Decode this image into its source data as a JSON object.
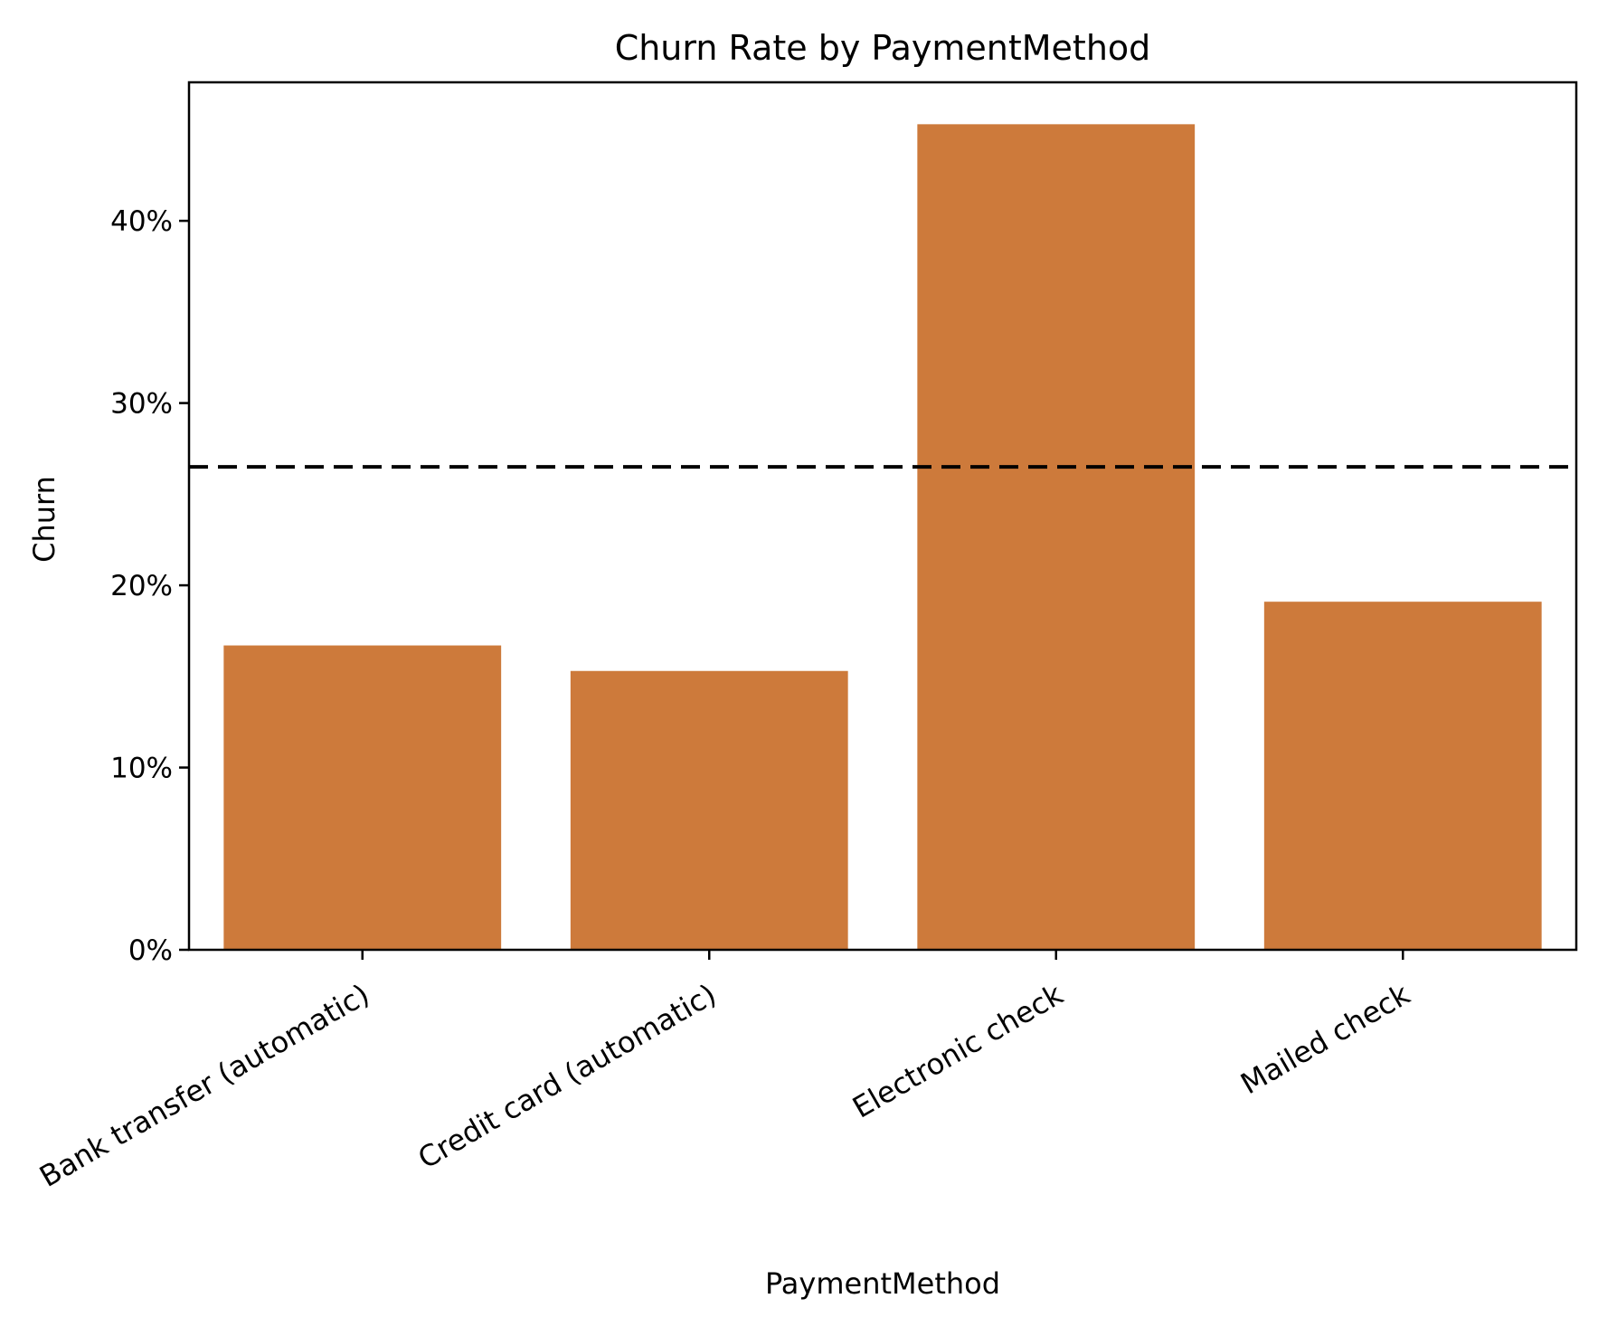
{
  "chart_data": {
    "type": "bar",
    "title": "Churn Rate by PaymentMethod",
    "xlabel": "PaymentMethod",
    "ylabel": "Churn",
    "categories": [
      "Bank transfer (automatic)",
      "Credit card (automatic)",
      "Electronic check",
      "Mailed check"
    ],
    "values": [
      0.167,
      0.153,
      0.453,
      0.191
    ],
    "ylim": [
      0,
      0.476
    ],
    "yticks": [
      0,
      0.1,
      0.2,
      0.3,
      0.4
    ],
    "ytick_labels": [
      "0%",
      "10%",
      "20%",
      "30%",
      "40%"
    ],
    "reference_line": {
      "value": 0.265,
      "style": "dashed",
      "color": "#000000"
    },
    "bar_color": "#cd7a3b",
    "grid": false,
    "legend": "none"
  }
}
